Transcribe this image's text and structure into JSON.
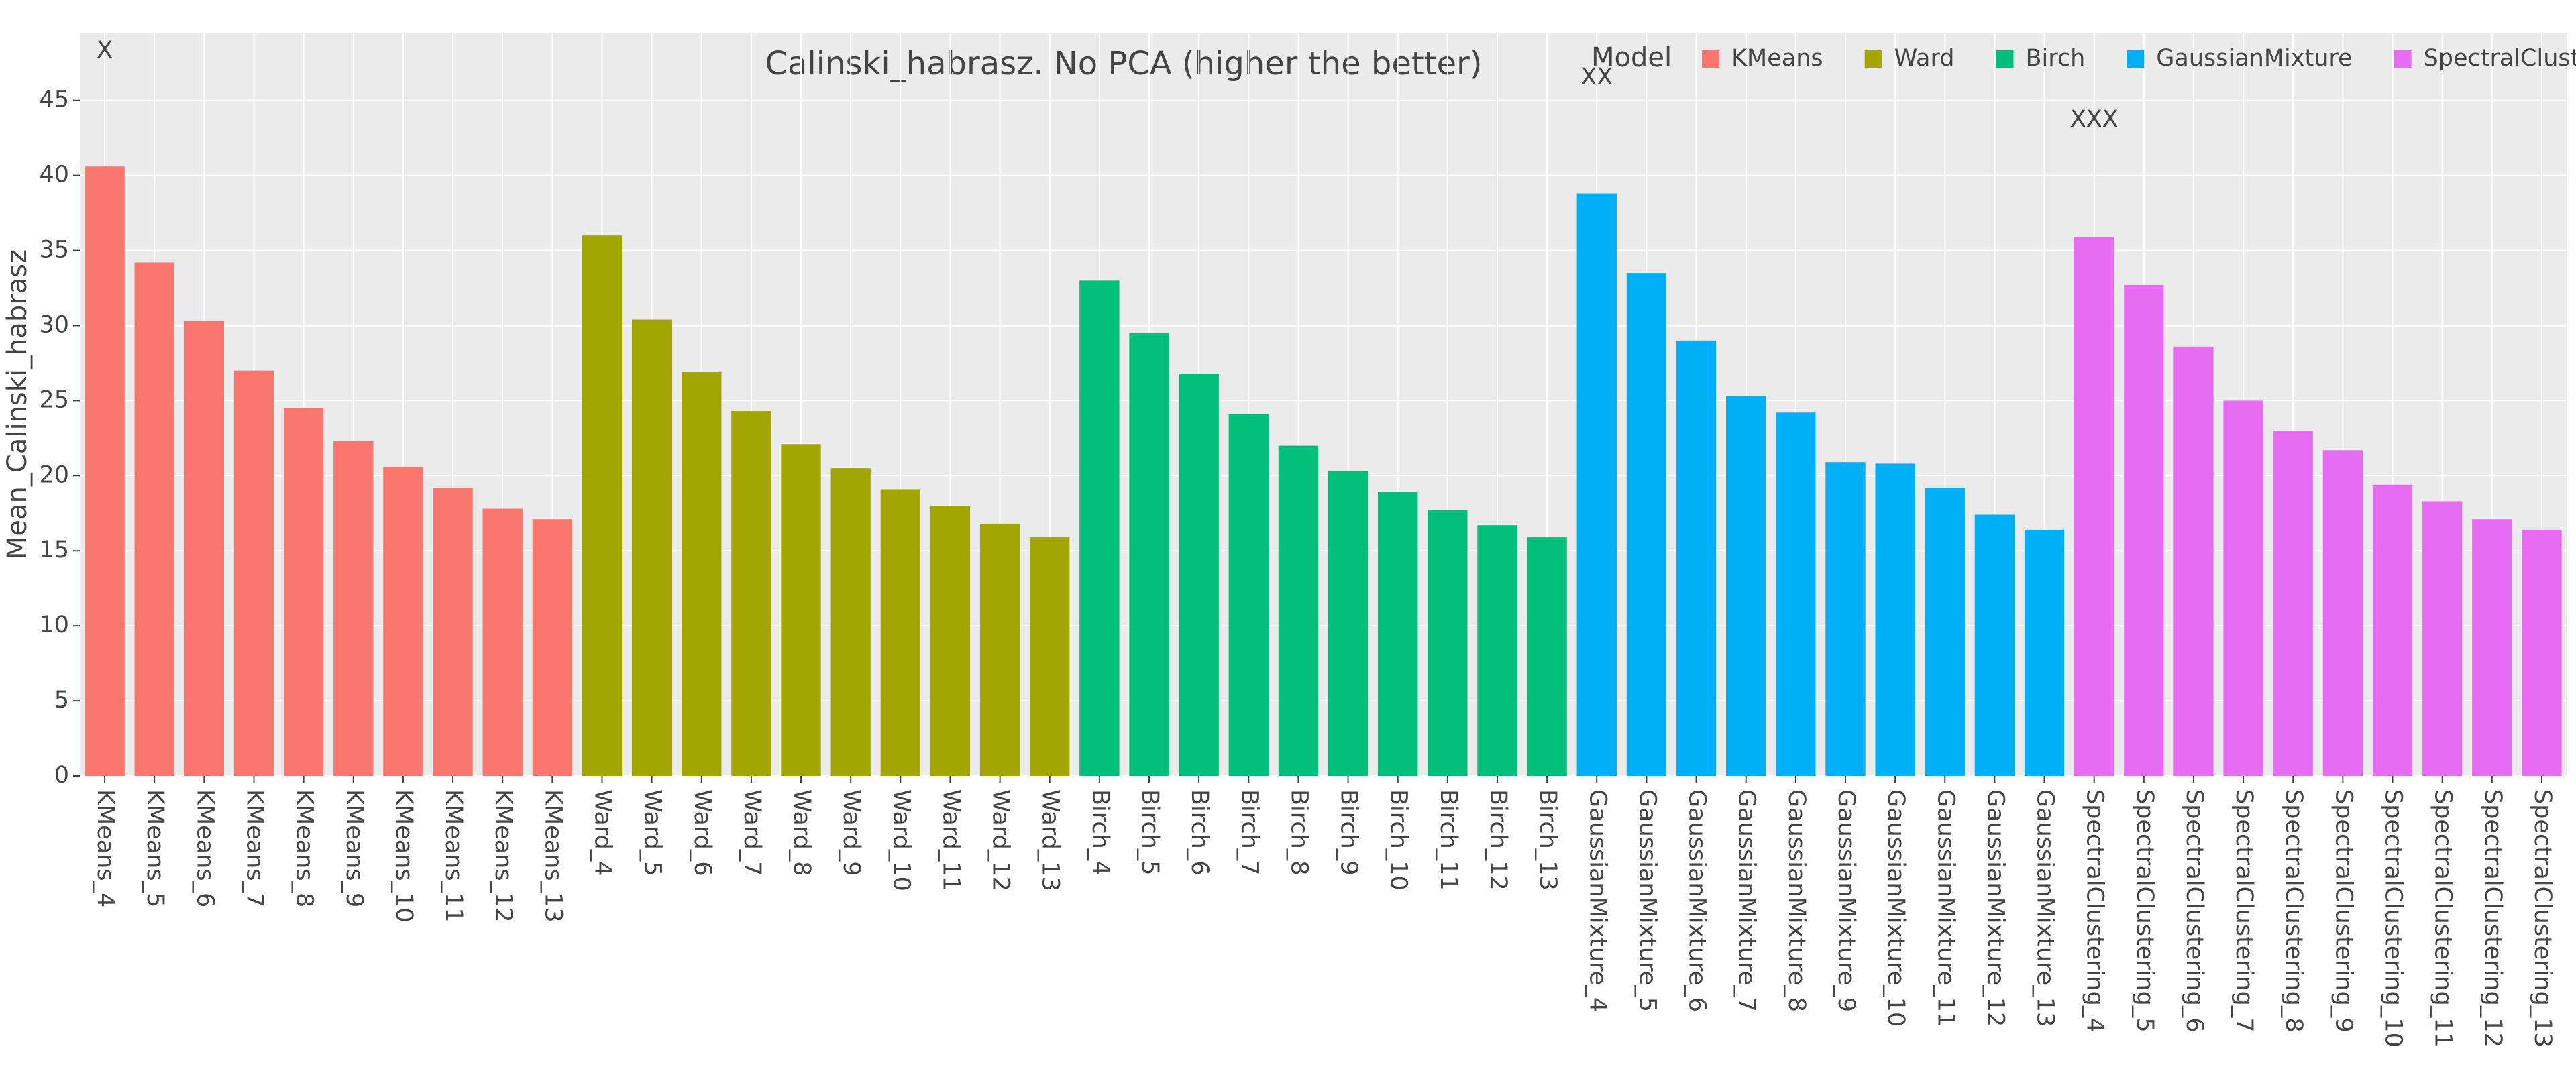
{
  "chart_data": {
    "type": "bar",
    "title": "Calinski_habrasz. No PCA (higher the better)",
    "y_label": "Mean_Calinski_habrasz",
    "legend_title": "Model",
    "legend_position": "top-right",
    "grid": true,
    "ylim": [
      0,
      49.5
    ],
    "yticks": [
      0,
      5,
      10,
      15,
      20,
      25,
      30,
      35,
      40,
      45
    ],
    "series": [
      {
        "name": "KMeans",
        "color": "#F8766D",
        "categories": [
          "KMeans_4",
          "KMeans_5",
          "KMeans_6",
          "KMeans_7",
          "KMeans_8",
          "KMeans_9",
          "KMeans_10",
          "KMeans_11",
          "KMeans_12",
          "KMeans_13"
        ],
        "values": [
          40.6,
          34.2,
          30.3,
          27.0,
          24.5,
          22.3,
          20.6,
          19.2,
          17.8,
          17.1
        ]
      },
      {
        "name": "Ward",
        "color": "#A3A500",
        "categories": [
          "Ward_4",
          "Ward_5",
          "Ward_6",
          "Ward_7",
          "Ward_8",
          "Ward_9",
          "Ward_10",
          "Ward_11",
          "Ward_12",
          "Ward_13"
        ],
        "values": [
          36.0,
          30.4,
          26.9,
          24.3,
          22.1,
          20.5,
          19.1,
          18.0,
          16.8,
          15.9
        ]
      },
      {
        "name": "Birch",
        "color": "#00BF7D",
        "categories": [
          "Birch_4",
          "Birch_5",
          "Birch_6",
          "Birch_7",
          "Birch_8",
          "Birch_9",
          "Birch_10",
          "Birch_11",
          "Birch_12",
          "Birch_13"
        ],
        "values": [
          33.0,
          29.5,
          26.8,
          24.1,
          22.0,
          20.3,
          18.9,
          17.7,
          16.7,
          15.9
        ]
      },
      {
        "name": "GaussianMixture",
        "color": "#00B0F6",
        "categories": [
          "GaussianMixture_4",
          "GaussianMixture_5",
          "GaussianMixture_6",
          "GaussianMixture_7",
          "GaussianMixture_8",
          "GaussianMixture_9",
          "GaussianMixture_10",
          "GaussianMixture_11",
          "GaussianMixture_12",
          "GaussianMixture_13"
        ],
        "values": [
          38.8,
          33.5,
          29.0,
          25.3,
          24.2,
          20.9,
          20.8,
          19.2,
          17.4,
          16.4
        ]
      },
      {
        "name": "SpectralClustering",
        "color": "#E76BF3",
        "categories": [
          "SpectralClustering_4",
          "SpectralClustering_5",
          "SpectralClustering_6",
          "SpectralClustering_7",
          "SpectralClustering_8",
          "SpectralClustering_9",
          "SpectralClustering_10",
          "SpectralClustering_11",
          "SpectralClustering_12",
          "SpectralClustering_13"
        ],
        "values": [
          35.9,
          32.7,
          28.6,
          25.0,
          23.0,
          21.7,
          19.4,
          18.3,
          17.1,
          16.4
        ]
      }
    ],
    "annotations": [
      {
        "text": "X",
        "x": "KMeans_4",
        "y": 48.3
      },
      {
        "text": "XX",
        "x": "GaussianMixture_4",
        "y": 46.5
      },
      {
        "text": "XXX",
        "x": "SpectralClustering_4",
        "y": 43.7
      }
    ]
  }
}
